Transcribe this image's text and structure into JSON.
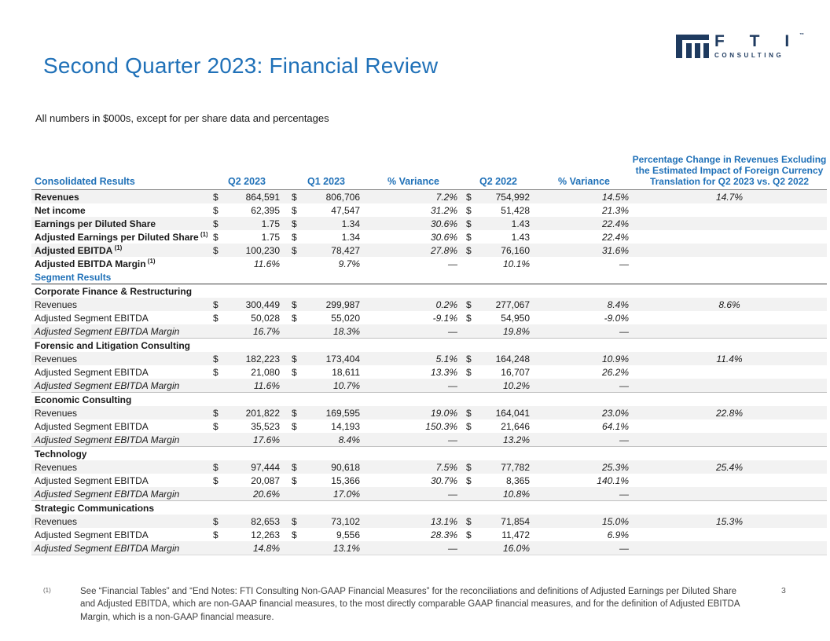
{
  "page": {
    "title": "Second Quarter 2023: Financial Review",
    "subtitle": "All numbers in $000s, except for per share data and percentages",
    "page_number": "3",
    "colors": {
      "accent_blue": "#2071b8",
      "logo_navy": "#1e3a5f",
      "stripe_gray": "#f2f2f2"
    }
  },
  "logo": {
    "brand": "F T I",
    "trademark": "™",
    "sub": "CONSULTING"
  },
  "table": {
    "headers": {
      "label": "Consolidated Results",
      "q2_2023": "Q2 2023",
      "q1_2023": "Q1 2023",
      "variance1": "% Variance",
      "q2_2022": "Q2 2022",
      "variance2": "% Variance",
      "fx_change": "Percentage Change in Revenues Excluding the Estimated Impact of Foreign Currency Translation for Q2 2023 vs. Q2 2022"
    },
    "rows": [
      {
        "type": "data",
        "striped": true,
        "bold": true,
        "label": "Revenues",
        "sup": "",
        "cells": {
          "d1": "$",
          "v1": "864,591",
          "d2": "$",
          "v2": "806,706",
          "var1": "7.2%",
          "d3": "$",
          "v3": "754,992",
          "var2": "14.5%",
          "fx": "14.7%"
        }
      },
      {
        "type": "data",
        "striped": false,
        "bold": true,
        "label": "Net income",
        "sup": "",
        "cells": {
          "d1": "$",
          "v1": "62,395",
          "d2": "$",
          "v2": "47,547",
          "var1": "31.2%",
          "d3": "$",
          "v3": "51,428",
          "var2": "21.3%",
          "fx": ""
        }
      },
      {
        "type": "data",
        "striped": true,
        "bold": true,
        "label": "Earnings per Diluted Share",
        "sup": "",
        "cells": {
          "d1": "$",
          "v1": "1.75",
          "d2": "$",
          "v2": "1.34",
          "var1": "30.6%",
          "d3": "$",
          "v3": "1.43",
          "var2": "22.4%",
          "fx": ""
        }
      },
      {
        "type": "data",
        "striped": false,
        "bold": true,
        "label": "Adjusted Earnings per Diluted Share",
        "sup": "(1)",
        "cells": {
          "d1": "$",
          "v1": "1.75",
          "d2": "$",
          "v2": "1.34",
          "var1": "30.6%",
          "d3": "$",
          "v3": "1.43",
          "var2": "22.4%",
          "fx": ""
        }
      },
      {
        "type": "data",
        "striped": true,
        "bold": true,
        "label": "Adjusted EBITDA",
        "sup": "(1)",
        "cells": {
          "d1": "$",
          "v1": "100,230",
          "d2": "$",
          "v2": "78,427",
          "var1": "27.8%",
          "d3": "$",
          "v3": "76,160",
          "var2": "31.6%",
          "fx": ""
        }
      },
      {
        "type": "data",
        "striped": false,
        "bold": true,
        "italicVals": true,
        "label": "Adjusted EBITDA Margin",
        "sup": "(1)",
        "cells": {
          "d1": "",
          "v1": "11.6%",
          "d2": "",
          "v2": "9.7%",
          "var1": "—",
          "d3": "",
          "v3": "10.1%",
          "var2": "—",
          "fx": ""
        }
      },
      {
        "type": "section",
        "striped": false,
        "label": "Segment Results"
      },
      {
        "type": "segment",
        "striped": false,
        "border": "dark",
        "label": "Corporate Finance & Restructuring"
      },
      {
        "type": "data",
        "striped": true,
        "label": "Revenues",
        "sup": "",
        "cells": {
          "d1": "$",
          "v1": "300,449",
          "d2": "$",
          "v2": "299,987",
          "var1": "0.2%",
          "d3": "$",
          "v3": "277,067",
          "var2": "8.4%",
          "fx": "8.6%"
        }
      },
      {
        "type": "data",
        "striped": false,
        "label": "Adjusted Segment EBITDA",
        "sup": "",
        "cells": {
          "d1": "$",
          "v1": "50,028",
          "d2": "$",
          "v2": "55,020",
          "var1": "-9.1%",
          "d3": "$",
          "v3": "54,950",
          "var2": "-9.0%",
          "fx": ""
        }
      },
      {
        "type": "data",
        "striped": true,
        "italicLabel": true,
        "italicVals": true,
        "label": "Adjusted Segment EBITDA Margin",
        "sup": "",
        "cells": {
          "d1": "",
          "v1": "16.7%",
          "d2": "",
          "v2": "18.3%",
          "var1": "—",
          "d3": "",
          "v3": "19.8%",
          "var2": "—",
          "fx": ""
        }
      },
      {
        "type": "segment",
        "striped": false,
        "border": "light",
        "label": "Forensic and Litigation Consulting"
      },
      {
        "type": "data",
        "striped": true,
        "label": "Revenues",
        "sup": "",
        "cells": {
          "d1": "$",
          "v1": "182,223",
          "d2": "$",
          "v2": "173,404",
          "var1": "5.1%",
          "d3": "$",
          "v3": "164,248",
          "var2": "10.9%",
          "fx": "11.4%"
        }
      },
      {
        "type": "data",
        "striped": false,
        "label": "Adjusted Segment EBITDA",
        "sup": "",
        "cells": {
          "d1": "$",
          "v1": "21,080",
          "d2": "$",
          "v2": "18,611",
          "var1": "13.3%",
          "d3": "$",
          "v3": "16,707",
          "var2": "26.2%",
          "fx": ""
        }
      },
      {
        "type": "data",
        "striped": true,
        "italicLabel": true,
        "italicVals": true,
        "label": "Adjusted Segment EBITDA Margin",
        "sup": "",
        "cells": {
          "d1": "",
          "v1": "11.6%",
          "d2": "",
          "v2": "10.7%",
          "var1": "—",
          "d3": "",
          "v3": "10.2%",
          "var2": "—",
          "fx": ""
        }
      },
      {
        "type": "segment",
        "striped": false,
        "border": "light",
        "label": "Economic Consulting"
      },
      {
        "type": "data",
        "striped": true,
        "label": "Revenues",
        "sup": "",
        "cells": {
          "d1": "$",
          "v1": "201,822",
          "d2": "$",
          "v2": "169,595",
          "var1": "19.0%",
          "d3": "$",
          "v3": "164,041",
          "var2": "23.0%",
          "fx": "22.8%"
        }
      },
      {
        "type": "data",
        "striped": false,
        "label": "Adjusted Segment EBITDA",
        "sup": "",
        "cells": {
          "d1": "$",
          "v1": "35,523",
          "d2": "$",
          "v2": "14,193",
          "var1": "150.3%",
          "d3": "$",
          "v3": "21,646",
          "var2": "64.1%",
          "fx": ""
        }
      },
      {
        "type": "data",
        "striped": true,
        "italicLabel": true,
        "italicVals": true,
        "label": "Adjusted Segment EBITDA Margin",
        "sup": "",
        "cells": {
          "d1": "",
          "v1": "17.6%",
          "d2": "",
          "v2": "8.4%",
          "var1": "—",
          "d3": "",
          "v3": "13.2%",
          "var2": "—",
          "fx": ""
        }
      },
      {
        "type": "segment",
        "striped": false,
        "border": "light",
        "label": "Technology"
      },
      {
        "type": "data",
        "striped": true,
        "label": "Revenues",
        "sup": "",
        "cells": {
          "d1": "$",
          "v1": "97,444",
          "d2": "$",
          "v2": "90,618",
          "var1": "7.5%",
          "d3": "$",
          "v3": "77,782",
          "var2": "25.3%",
          "fx": "25.4%"
        }
      },
      {
        "type": "data",
        "striped": false,
        "label": "Adjusted Segment EBITDA",
        "sup": "",
        "cells": {
          "d1": "$",
          "v1": "20,087",
          "d2": "$",
          "v2": "15,366",
          "var1": "30.7%",
          "d3": "$",
          "v3": "8,365",
          "var2": "140.1%",
          "fx": ""
        }
      },
      {
        "type": "data",
        "striped": true,
        "italicLabel": true,
        "italicVals": true,
        "label": "Adjusted Segment EBITDA Margin",
        "sup": "",
        "cells": {
          "d1": "",
          "v1": "20.6%",
          "d2": "",
          "v2": "17.0%",
          "var1": "—",
          "d3": "",
          "v3": "10.8%",
          "var2": "—",
          "fx": ""
        }
      },
      {
        "type": "segment",
        "striped": false,
        "border": "light",
        "label": "Strategic Communications"
      },
      {
        "type": "data",
        "striped": true,
        "label": "Revenues",
        "sup": "",
        "cells": {
          "d1": "$",
          "v1": "82,653",
          "d2": "$",
          "v2": "73,102",
          "var1": "13.1%",
          "d3": "$",
          "v3": "71,854",
          "var2": "15.0%",
          "fx": "15.3%"
        }
      },
      {
        "type": "data",
        "striped": false,
        "label": "Adjusted Segment EBITDA",
        "sup": "",
        "cells": {
          "d1": "$",
          "v1": "12,263",
          "d2": "$",
          "v2": "9,556",
          "var1": "28.3%",
          "d3": "$",
          "v3": "11,472",
          "var2": "6.9%",
          "fx": ""
        }
      },
      {
        "type": "data",
        "striped": true,
        "italicLabel": true,
        "italicVals": true,
        "label": "Adjusted Segment EBITDA Margin",
        "sup": "",
        "cells": {
          "d1": "",
          "v1": "14.8%",
          "d2": "",
          "v2": "13.1%",
          "var1": "—",
          "d3": "",
          "v3": "16.0%",
          "var2": "—",
          "fx": ""
        }
      }
    ]
  },
  "footnote": {
    "marker": "(1)",
    "text": "See “Financial Tables” and “End Notes: FTI Consulting Non-GAAP Financial Measures” for the reconciliations and definitions of Adjusted Earnings per Diluted Share and Adjusted EBITDA, which are non-GAAP financial measures, to the most directly comparable GAAP financial measures, and for the definition of Adjusted EBITDA Margin, which is a non-GAAP financial measure."
  }
}
